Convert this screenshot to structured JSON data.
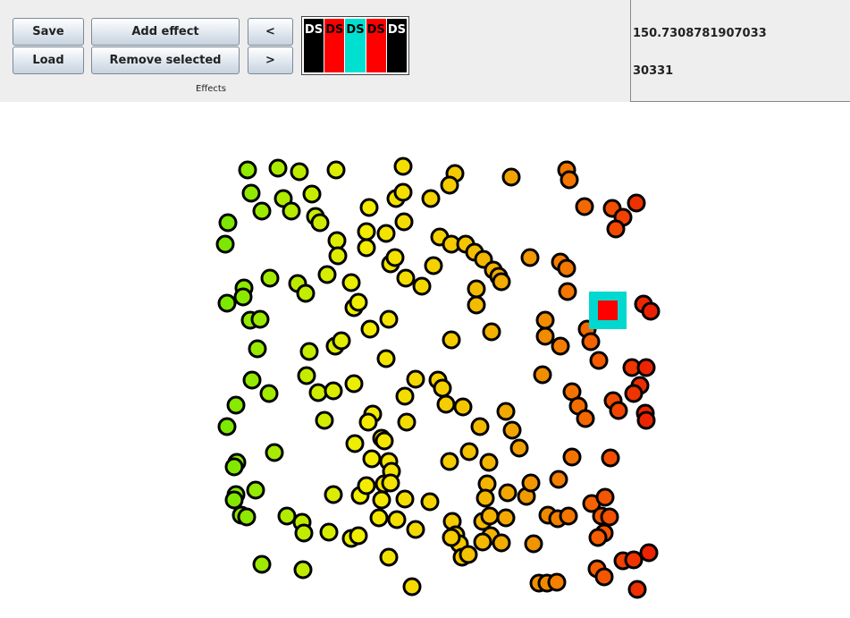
{
  "toolbar": {
    "save_label": "Save",
    "load_label": "Load",
    "add_effect_label": "Add effect",
    "remove_selected_label": "Remove selected",
    "prev_label": "<",
    "next_label": ">",
    "effects_label": "Effects",
    "swatches": [
      {
        "text": "DS",
        "color": "#000000",
        "text_color": "#ffffff"
      },
      {
        "text": "DS",
        "color": "#ff0000",
        "text_color": "#000000"
      },
      {
        "text": "DS",
        "color": "#00e0d0",
        "text_color": "#000000"
      },
      {
        "text": "DS",
        "color": "#ff0000",
        "text_color": "#000000"
      },
      {
        "text": "DS",
        "color": "#000000",
        "text_color": "#ffffff"
      }
    ]
  },
  "info": {
    "value_1": "150.7308781907033",
    "value_2": "30331"
  },
  "colors": {
    "selection_outline": "#00d8d0",
    "selection_fill": "#ff0000",
    "dot_stroke": "#000000"
  }
}
